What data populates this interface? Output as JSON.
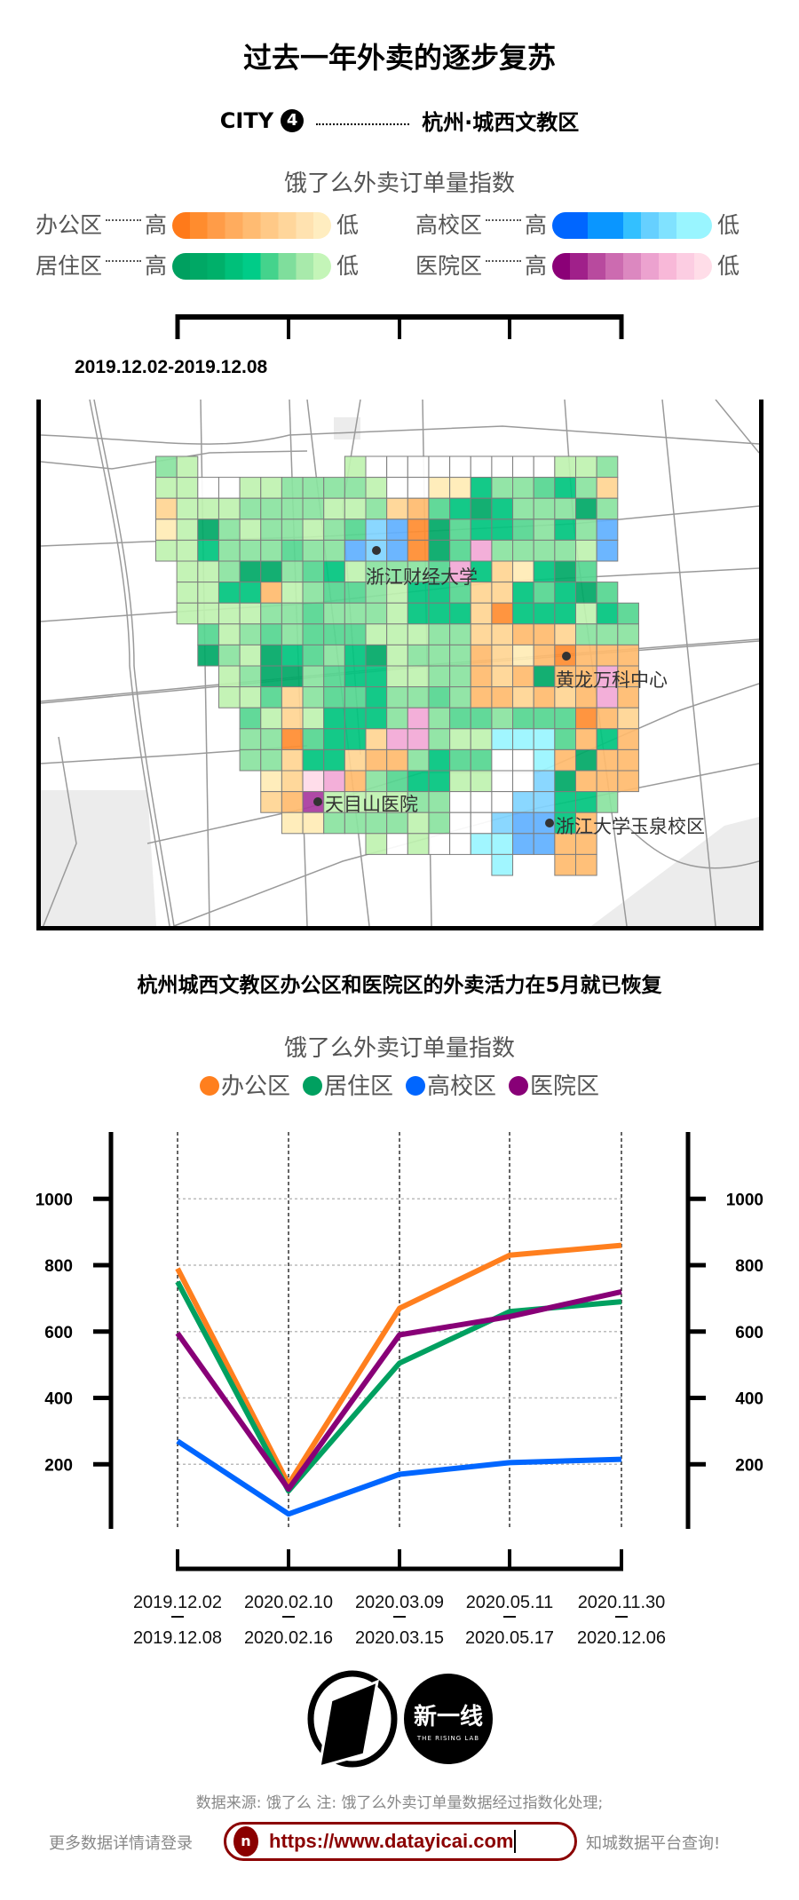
{
  "title": "过去一年外卖的逐步复苏",
  "city": {
    "prefix": "CITY",
    "number": "4",
    "name": "杭州·城西文教区"
  },
  "legend": {
    "title": "饿了么外卖订单量指数",
    "high": "高",
    "low": "低",
    "items": [
      {
        "label": "办公区",
        "stops": [
          "#ff7a1a",
          "#ff8c2e",
          "#ff9c48",
          "#ffac5e",
          "#ffbb72",
          "#ffc987",
          "#ffd69b",
          "#ffe2b0",
          "#ffedc0"
        ]
      },
      {
        "label": "高校区",
        "stops": [
          "#0066ff",
          "#0066ff",
          "#0a96ff",
          "#0a96ff",
          "#33c0ff",
          "#66d0ff",
          "#80e2ff",
          "#99f5ff",
          "#99f5ff"
        ]
      },
      {
        "label": "居住区",
        "stops": [
          "#00a060",
          "#00a865",
          "#00b06a",
          "#00c07a",
          "#00cc88",
          "#44d38c",
          "#7fde9c",
          "#a8eaab",
          "#c4f5b8"
        ]
      },
      {
        "label": "医院区",
        "stops": [
          "#8b0077",
          "#a0208a",
          "#b84a9e",
          "#cc6bb0",
          "#dc88c0",
          "#eca2cf",
          "#f8b8d8",
          "#fccde2",
          "#ffdde8"
        ]
      }
    ]
  },
  "map": {
    "date_range": "2019.12.02-2019.12.08",
    "cell_colors": {
      "w": "#ffffff",
      "1": "#bff2b0",
      "2": "#8ae3a0",
      "3": "#55d690",
      "4": "#00c47e",
      "5": "#00a866",
      "a": "#ffebb5",
      "b": "#ffd593",
      "c": "#ffbb6e",
      "d": "#ff8c30",
      "x": "#99f5ff",
      "y": "#80d4ff",
      "z": "#60b0ff",
      "p": "#f2a8d6",
      "q": "#ffdae8",
      "P": "#a83a9e"
    },
    "grid": [
      "21.......1wwwwwwwww112.",
      "11ww1122221wwaa422342b.",
      "b1112222112bc345422252.",
      "a152122123yzd53443242z.",
      "114222322zyzd53p22221z.",
      ".1125523412223p4ba453..",
      ".1144c123321443bb43453.",
      ".11112232221444bd444143",
      "..3123233311122bbccb222",
      "..5215432451222cbacdccc",
      "...125523441122cbc5ccpc",
      "...113b23342232ccbcbcpc",
      "....31b14442p2332333dcb",
      "....22d344bpp211xxx3c4c",
      "....22b44bcc2433wwxc5cc",
      ".....abqpc234411wwy5ccc",
      ".....bcP111122wwwyy442.",
      "......aa222212wwyzz4c..",
      "..........1w1wwxxzzcc..",
      "................x..cc.."
    ],
    "places": [
      {
        "name": "浙江财经大学"
      },
      {
        "name": "黄龙万科中心"
      },
      {
        "name": "天目山医院"
      },
      {
        "name": "浙江大学玉泉校区"
      }
    ]
  },
  "chart_data": {
    "type": "line",
    "title": "杭州城西文教区办公区和医院区的外卖活力在5月就已恢复",
    "subtitle": "饿了么外卖订单量指数",
    "categories": [
      {
        "start": "2019.12.02",
        "end": "2019.12.08"
      },
      {
        "start": "2020.02.10",
        "end": "2020.02.16"
      },
      {
        "start": "2020.03.09",
        "end": "2020.03.15"
      },
      {
        "start": "2020.05.11",
        "end": "2020.05.17"
      },
      {
        "start": "2020.11.30",
        "end": "2020.12.06"
      }
    ],
    "series": [
      {
        "name": "办公区",
        "color": "#ff7f1e",
        "values": [
          790,
          140,
          670,
          830,
          860
        ]
      },
      {
        "name": "居住区",
        "color": "#00a060",
        "values": [
          750,
          120,
          505,
          660,
          690
        ]
      },
      {
        "name": "高校区",
        "color": "#0066ff",
        "values": [
          270,
          50,
          170,
          205,
          215
        ]
      },
      {
        "name": "医院区",
        "color": "#880077",
        "values": [
          595,
          125,
          590,
          645,
          720
        ]
      }
    ],
    "yticks": [
      "200",
      "400",
      "600",
      "800",
      "1000"
    ],
    "ylim": [
      0,
      1200
    ],
    "grid": true,
    "legend_position": "top"
  },
  "logos": {
    "right_text": "新一线",
    "right_sub": "THE RISING LAB"
  },
  "footer": {
    "source": "数据来源: 饿了么   注: 饿了么外卖订单量数据经过指数化处理;",
    "more_prefix": "更多数据详情请登录",
    "url": "https://www.datayicai.com",
    "url_icon": "n",
    "more_suffix": "知城数据平台查询!"
  }
}
